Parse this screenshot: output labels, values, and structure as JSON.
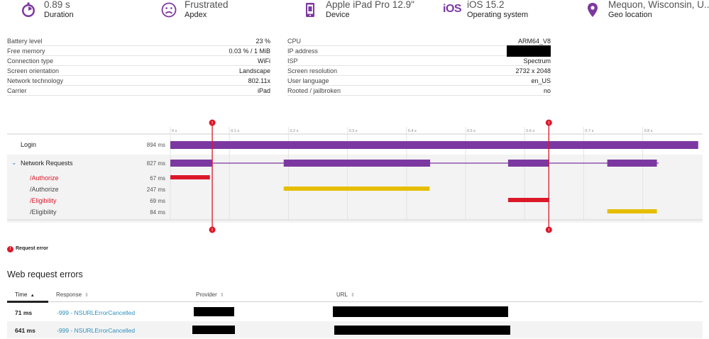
{
  "stats": [
    {
      "value": "0.89 s",
      "label": "Duration",
      "icon": "stopwatch-icon"
    },
    {
      "value": "Frustrated",
      "label": "Apdex",
      "icon": "frown-face-icon"
    },
    {
      "value": "Apple iPad Pro 12.9\"",
      "label": "Device",
      "icon": "tablet-icon"
    },
    {
      "value": "iOS 15.2",
      "label": "Operating system",
      "icon": "ios-icon",
      "badge": "iOS"
    },
    {
      "value": "Mequon, Wisconsin, U...",
      "label": "Geo location",
      "icon": "location-pin-icon"
    }
  ],
  "attributes_left": [
    {
      "key": "Battery level",
      "value": "23 %"
    },
    {
      "key": "Free memory",
      "value": "0.03 % / 1 MiB"
    },
    {
      "key": "Connection type",
      "value": "WiFi"
    },
    {
      "key": "Screen orientation",
      "value": "Landscape"
    },
    {
      "key": "Network technology",
      "value": "802.11x"
    },
    {
      "key": "Carrier",
      "value": "iPad"
    }
  ],
  "attributes_right": [
    {
      "key": "CPU",
      "value": "ARM64_V8"
    },
    {
      "key": "IP address",
      "value": ""
    },
    {
      "key": "ISP",
      "value": "Spectrum"
    },
    {
      "key": "Screen resolution",
      "value": "2732 x 2048"
    },
    {
      "key": "User language",
      "value": "en_US"
    },
    {
      "key": "Rooted / jailbroken",
      "value": "no"
    }
  ],
  "waterfall": {
    "axis_ticks": [
      "0 s",
      "0.1 s",
      "0.2 s",
      "0.3 s",
      "0.4 s",
      "0.5 s",
      "0.6 s",
      "0.7 s",
      "0.8 s"
    ],
    "error_marker_glyph": "!",
    "rows": [
      {
        "label": "Login",
        "duration": "894 ms",
        "start_s": 0.0,
        "end_s": 0.894,
        "color": "#7c38a1",
        "error": false,
        "level": 0
      },
      {
        "label": "Network Requests",
        "duration": "827 ms",
        "start_s": 0.0,
        "end_s": 0.827,
        "color": "#7c38a1",
        "error": false,
        "level": 0,
        "expanded": true,
        "segments": [
          [
            0.0,
            0.071
          ],
          [
            0.192,
            0.44
          ],
          [
            0.572,
            0.641
          ],
          [
            0.74,
            0.824
          ]
        ]
      },
      {
        "label": "/Authorize",
        "duration": "67 ms",
        "start_s": 0.0,
        "end_s": 0.067,
        "color": "#dc172a",
        "error": true,
        "level": 1
      },
      {
        "label": "/Authorize",
        "duration": "247 ms",
        "start_s": 0.192,
        "end_s": 0.439,
        "color": "#e6be00",
        "error": false,
        "level": 1
      },
      {
        "label": "/Eligibility",
        "duration": "69 ms",
        "start_s": 0.572,
        "end_s": 0.641,
        "color": "#dc172a",
        "error": true,
        "level": 1
      },
      {
        "label": "/Eligibility",
        "duration": "84 ms",
        "start_s": 0.74,
        "end_s": 0.824,
        "color": "#e6be00",
        "error": false,
        "level": 1
      }
    ],
    "error_markers_s": [
      0.071,
      0.641
    ]
  },
  "legend": {
    "text": "Request error"
  },
  "errors_section": {
    "title": "Web request errors",
    "columns": [
      {
        "label": "Time",
        "sort": "▲",
        "active": true
      },
      {
        "label": "Response",
        "sort": "⇕",
        "active": false
      },
      {
        "label": "Provider",
        "sort": "⇕",
        "active": false
      },
      {
        "label": "URL",
        "sort": "⇕",
        "active": false
      }
    ],
    "rows": [
      {
        "time": "71 ms",
        "response": "-999 - NSURLErrorCancelled",
        "provider": "",
        "url": ""
      },
      {
        "time": "641 ms",
        "response": "-999 - NSURLErrorCancelled",
        "provider": "",
        "url": ""
      }
    ]
  },
  "colors": {
    "accent": "#7c38a1",
    "error": "#dc172a",
    "warning": "#e6be00",
    "link": "#2d8fbd"
  }
}
